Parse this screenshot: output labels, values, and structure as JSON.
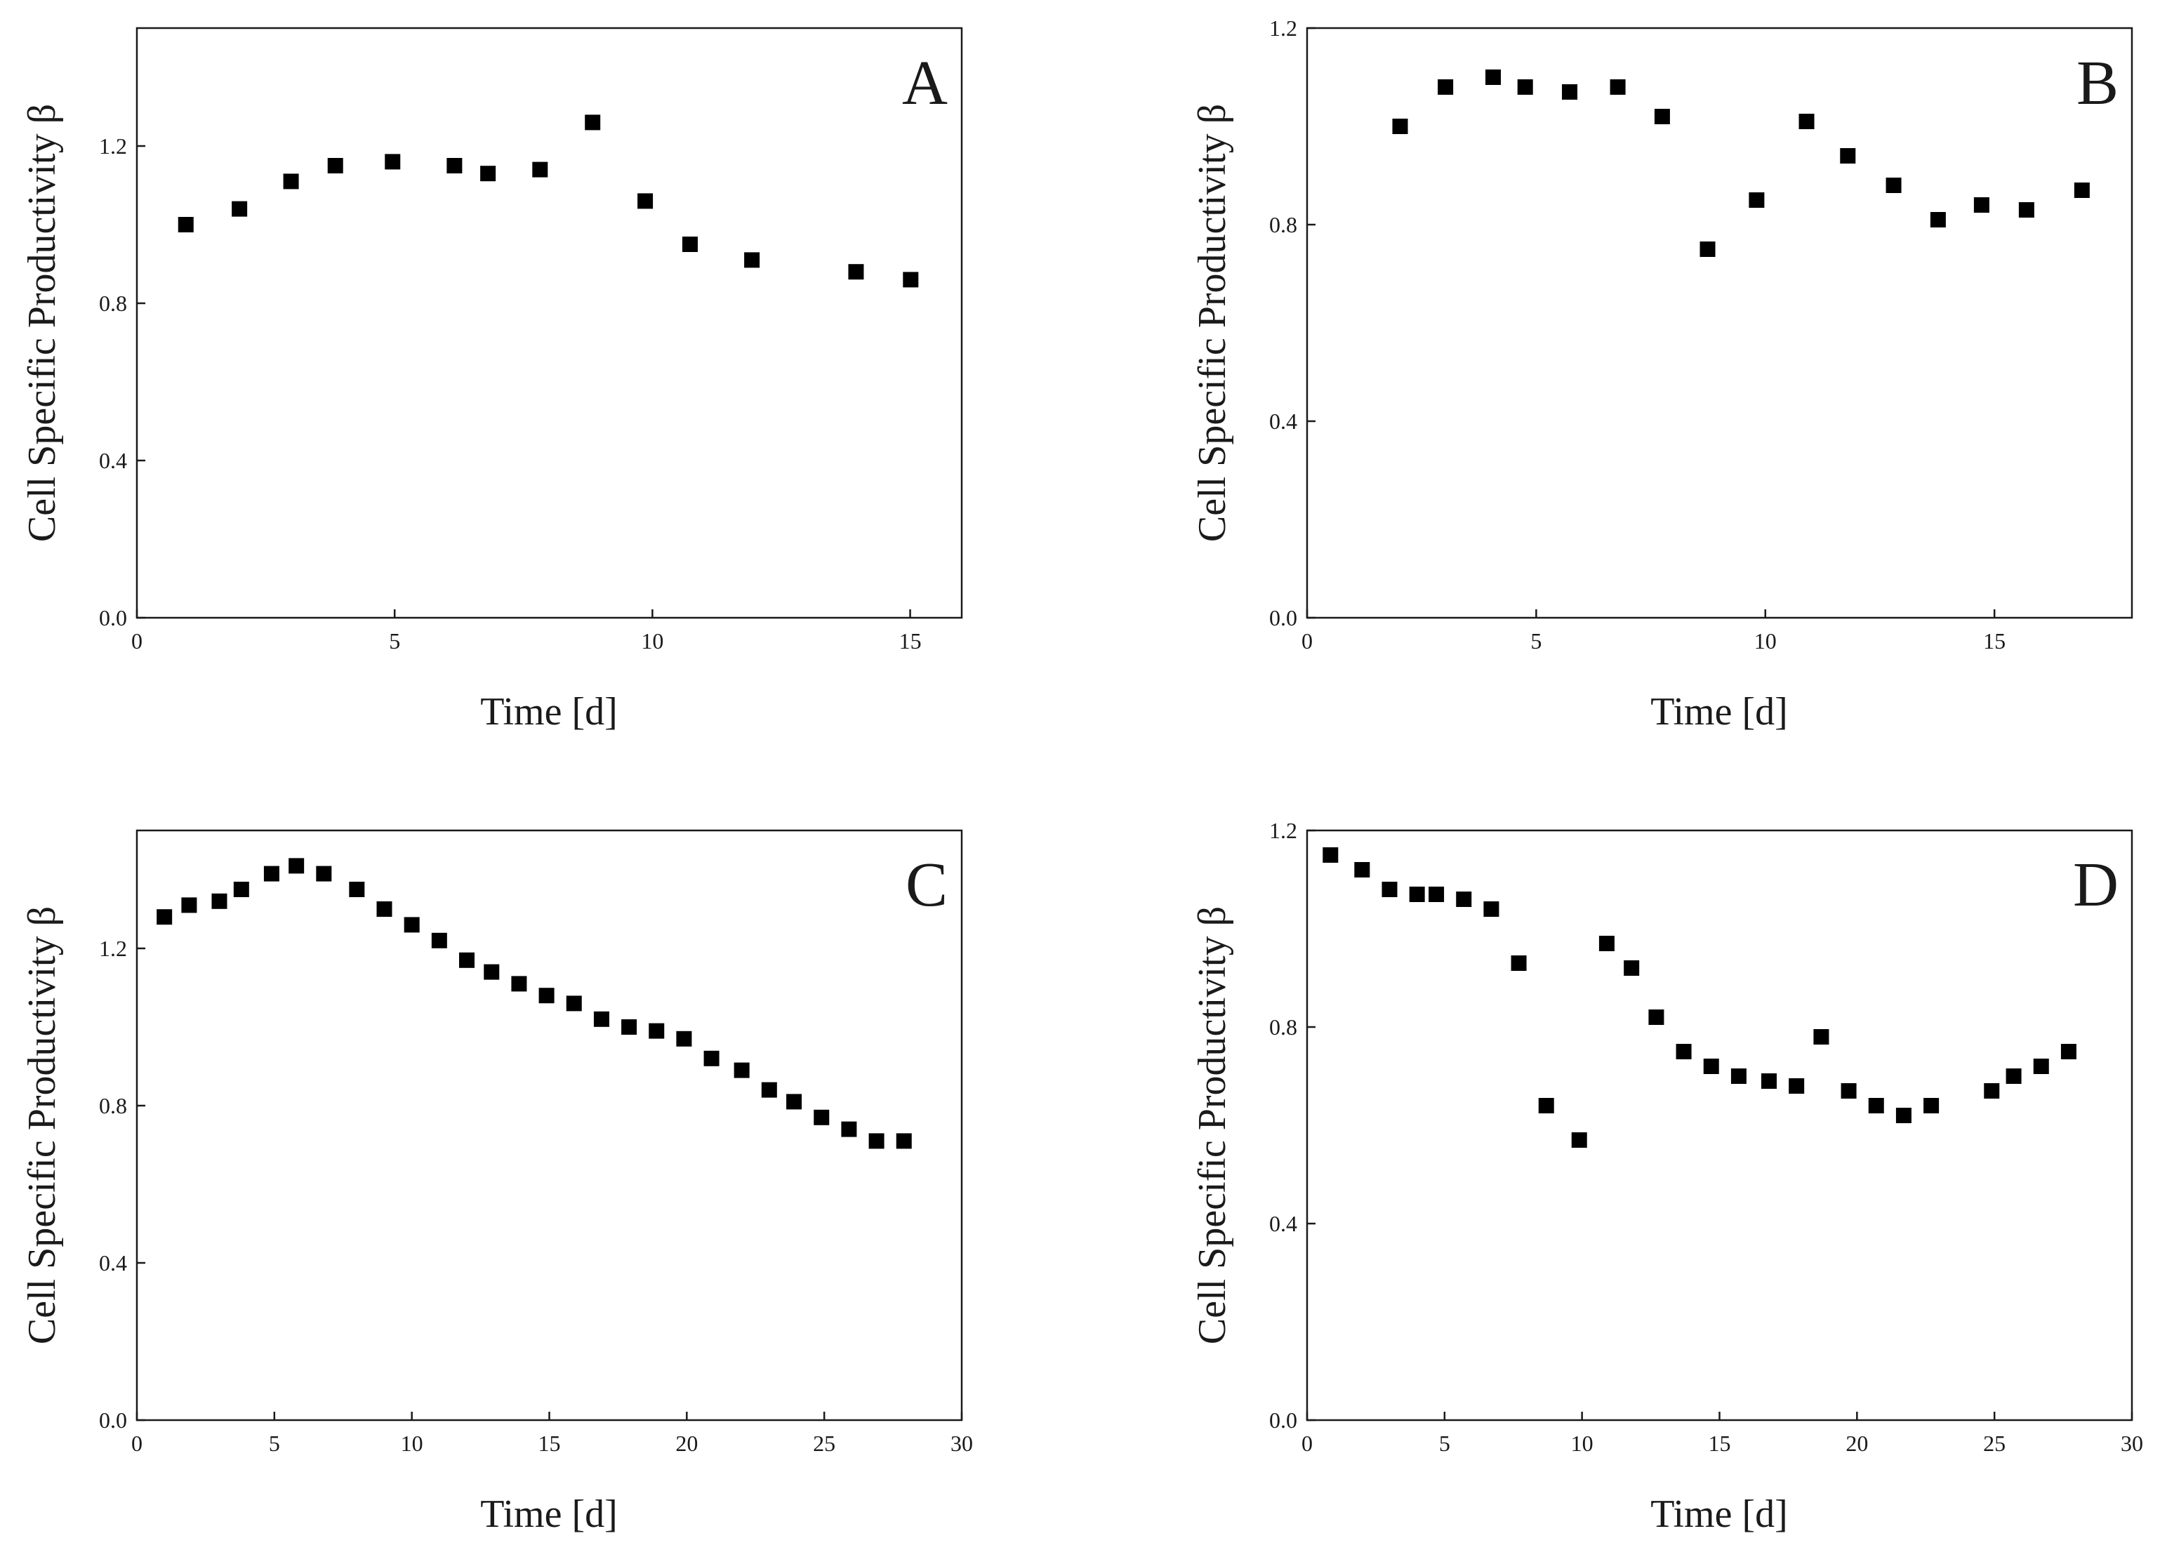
{
  "colors": {
    "marker": "#000000",
    "axis": "#1a1a1a",
    "background": "#ffffff"
  },
  "chart_data": [
    {
      "type": "scatter",
      "panel": "A",
      "xlabel": "Time [d]",
      "ylabel": "Cell Specific Productivity β",
      "xlim": [
        0,
        16
      ],
      "ylim": [
        0,
        1.5
      ],
      "xticks": [
        0,
        5,
        10,
        15
      ],
      "xtick_labels": [
        "0",
        "5",
        "10",
        "15"
      ],
      "yticks": [
        0,
        0.4,
        0.8,
        1.2
      ],
      "ytick_labels": [
        "0.0",
        "0.4",
        "0.8",
        "1.2"
      ],
      "x": [
        0.95,
        1.99,
        2.99,
        3.85,
        4.96,
        6.16,
        6.81,
        7.82,
        8.84,
        9.86,
        10.73,
        11.93,
        13.95,
        15.01
      ],
      "y": [
        1.0,
        1.04,
        1.11,
        1.15,
        1.16,
        1.15,
        1.13,
        1.14,
        1.26,
        1.06,
        0.95,
        0.91,
        0.88,
        0.86
      ]
    },
    {
      "type": "scatter",
      "panel": "B",
      "xlabel": "Time [d]",
      "ylabel": "Cell Specific Productivity β",
      "xlim": [
        0,
        18
      ],
      "ylim": [
        0,
        1.2
      ],
      "xticks": [
        0,
        5,
        10,
        15
      ],
      "xtick_labels": [
        "0",
        "5",
        "10",
        "15"
      ],
      "yticks": [
        0,
        0.4,
        0.8,
        1.2
      ],
      "ytick_labels": [
        "0.0",
        "0.4",
        "0.8",
        "1.2"
      ],
      "x": [
        2.03,
        3.02,
        4.06,
        4.76,
        5.73,
        6.78,
        7.75,
        8.74,
        9.81,
        10.9,
        11.8,
        12.8,
        13.77,
        14.72,
        15.7,
        16.91
      ],
      "y": [
        1.0,
        1.08,
        1.1,
        1.08,
        1.07,
        1.08,
        1.02,
        0.75,
        0.85,
        1.01,
        0.94,
        0.88,
        0.81,
        0.84,
        0.83,
        0.87
      ]
    },
    {
      "type": "scatter",
      "panel": "C",
      "xlabel": "Time [d]",
      "ylabel": "Cell Specific Productivity β",
      "xlim": [
        0,
        30
      ],
      "ylim": [
        0,
        1.5
      ],
      "xticks": [
        0,
        5,
        10,
        15,
        20,
        25,
        30
      ],
      "xtick_labels": [
        "0",
        "5",
        "10",
        "15",
        "20",
        "25",
        "30"
      ],
      "yticks": [
        0,
        0.4,
        0.8,
        1.2
      ],
      "ytick_labels": [
        "0.0",
        "0.4",
        "0.8",
        "1.2"
      ],
      "x": [
        1.0,
        1.9,
        3.0,
        3.8,
        4.9,
        5.8,
        6.8,
        8.0,
        9.0,
        10.0,
        11.0,
        12.0,
        12.9,
        13.9,
        14.9,
        15.9,
        16.9,
        17.9,
        18.9,
        19.9,
        20.9,
        22.0,
        23.0,
        23.9,
        24.9,
        25.9,
        26.9,
        27.9
      ],
      "y": [
        1.28,
        1.31,
        1.32,
        1.35,
        1.39,
        1.41,
        1.39,
        1.35,
        1.3,
        1.26,
        1.22,
        1.17,
        1.14,
        1.11,
        1.08,
        1.06,
        1.02,
        1.0,
        0.99,
        0.97,
        0.92,
        0.89,
        0.84,
        0.81,
        0.77,
        0.74,
        0.71,
        0.71
      ]
    },
    {
      "type": "scatter",
      "panel": "D",
      "xlabel": "Time [d]",
      "ylabel": "Cell Specific Productivity β",
      "xlim": [
        0,
        30
      ],
      "ylim": [
        0,
        1.2
      ],
      "xticks": [
        0,
        5,
        10,
        15,
        20,
        25,
        30
      ],
      "xtick_labels": [
        "0",
        "5",
        "10",
        "15",
        "20",
        "25",
        "30"
      ],
      "yticks": [
        0,
        0.4,
        0.8,
        1.2
      ],
      "ytick_labels": [
        "0.0",
        "0.4",
        "0.8",
        "1.2"
      ],
      "x": [
        0.85,
        2.0,
        3.0,
        4.0,
        4.7,
        5.7,
        6.7,
        7.7,
        8.7,
        9.9,
        10.9,
        11.8,
        12.7,
        13.7,
        14.7,
        15.7,
        16.8,
        17.8,
        18.7,
        19.7,
        20.7,
        21.7,
        22.7,
        24.9,
        25.7,
        26.7,
        27.7
      ],
      "y": [
        1.15,
        1.12,
        1.08,
        1.07,
        1.07,
        1.06,
        1.04,
        0.93,
        0.64,
        0.57,
        0.97,
        0.92,
        0.82,
        0.75,
        0.72,
        0.7,
        0.69,
        0.68,
        0.78,
        0.67,
        0.64,
        0.62,
        0.64,
        0.67,
        0.7,
        0.72,
        0.75
      ]
    }
  ]
}
